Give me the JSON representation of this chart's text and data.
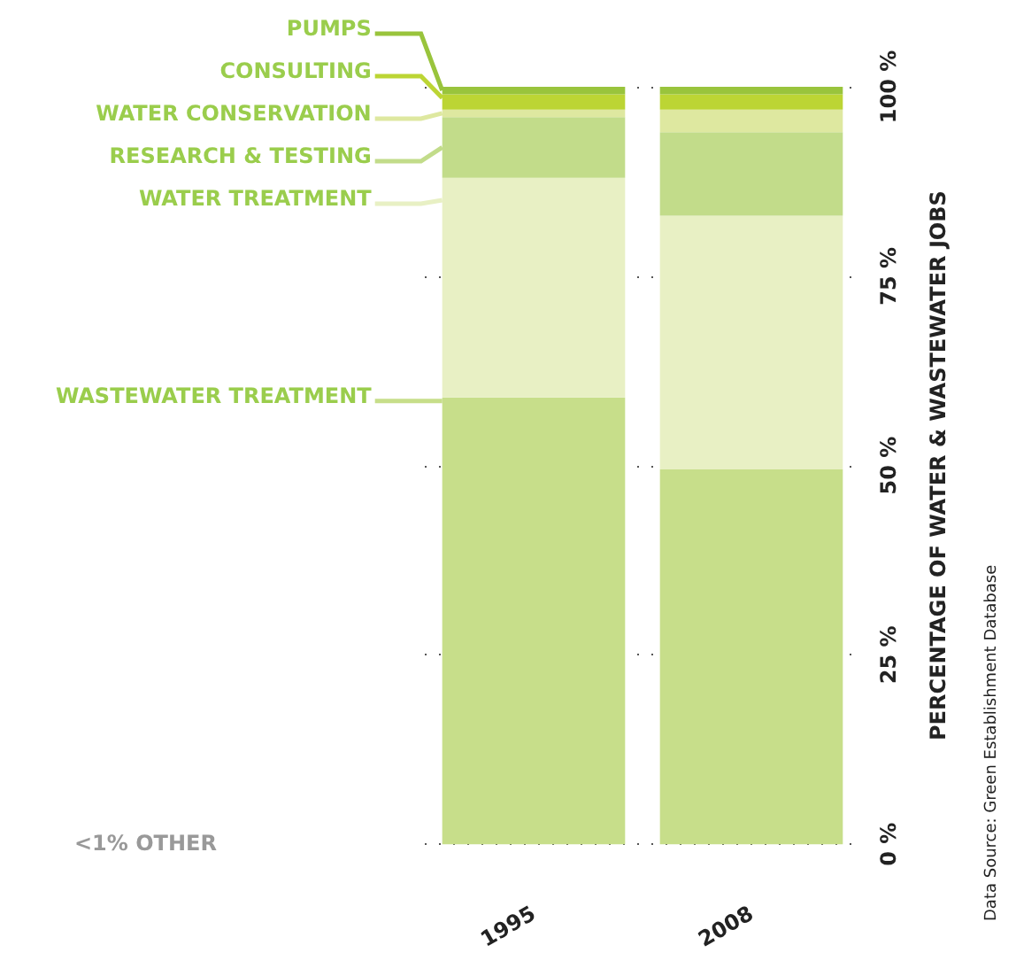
{
  "chart_data": {
    "type": "bar",
    "stacked": true,
    "ylabel": "PERCENTAGE OF WATER & WASTEWATER JOBS",
    "categories": [
      "1995",
      "2008"
    ],
    "series": [
      {
        "name": "WASTEWATER TREATMENT",
        "color": "#c7de8a",
        "values": [
          59,
          49.5
        ]
      },
      {
        "name": "WATER TREATMENT",
        "color": "#e8f0c4",
        "values": [
          29,
          33.5
        ]
      },
      {
        "name": "RESEARCH & TESTING",
        "color": "#c2dc8a",
        "values": [
          8,
          11
        ]
      },
      {
        "name": "WATER CONSERVATION",
        "color": "#dee8a0",
        "values": [
          1,
          3
        ]
      },
      {
        "name": "CONSULTING",
        "color": "#bcd534",
        "values": [
          2,
          2
        ]
      },
      {
        "name": "PUMPS",
        "color": "#99c43c",
        "values": [
          1,
          1
        ]
      }
    ],
    "ylim": [
      0,
      100
    ],
    "yticks": [
      {
        "value": 0,
        "label": "0 %"
      },
      {
        "value": 25,
        "label": "25 %"
      },
      {
        "value": 50,
        "label": "50 %"
      },
      {
        "value": 75,
        "label": "75 %"
      },
      {
        "value": 100,
        "label": "100 %"
      }
    ],
    "grid": "y",
    "legend": "left",
    "annotations": [
      "<1% OTHER",
      "Data Source: Green Establishment Database"
    ]
  }
}
